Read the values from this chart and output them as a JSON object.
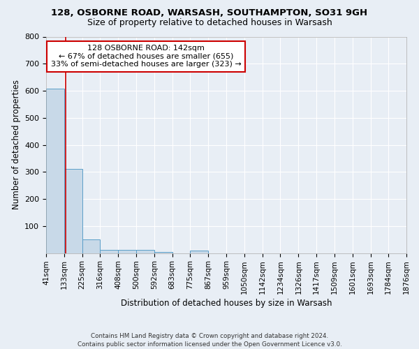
{
  "title1": "128, OSBORNE ROAD, WARSASH, SOUTHAMPTON, SO31 9GH",
  "title2": "Size of property relative to detached houses in Warsash",
  "xlabel": "Distribution of detached houses by size in Warsash",
  "ylabel": "Number of detached properties",
  "footnote": "Contains HM Land Registry data © Crown copyright and database right 2024.\nContains public sector information licensed under the Open Government Licence v3.0.",
  "bin_edges": [
    41,
    133,
    225,
    316,
    408,
    500,
    592,
    683,
    775,
    867,
    959,
    1050,
    1142,
    1234,
    1326,
    1417,
    1509,
    1601,
    1693,
    1784,
    1876
  ],
  "bar_heights": [
    607,
    310,
    50,
    12,
    12,
    12,
    5,
    0,
    8,
    0,
    0,
    0,
    0,
    0,
    0,
    0,
    0,
    0,
    0,
    0
  ],
  "property_size": 142,
  "annotation_line1": "128 OSBORNE ROAD: 142sqm",
  "annotation_line2": "← 67% of detached houses are smaller (655)",
  "annotation_line3": "33% of semi-detached houses are larger (323) →",
  "bar_color": "#c8d9e8",
  "bar_edge_color": "#5a9ec8",
  "vline_color": "#cc0000",
  "annotation_box_color": "#ffffff",
  "annotation_box_edge": "#cc0000",
  "bg_color": "#e8eef5",
  "ylim": [
    0,
    800
  ],
  "yticks": [
    0,
    100,
    200,
    300,
    400,
    500,
    600,
    700,
    800
  ],
  "grid_color": "#ffffff",
  "title1_fontsize": 9.5,
  "title2_fontsize": 9.0,
  "annotation_fontsize": 8.0,
  "axis_label_fontsize": 8.5,
  "tick_fontsize": 8.0
}
